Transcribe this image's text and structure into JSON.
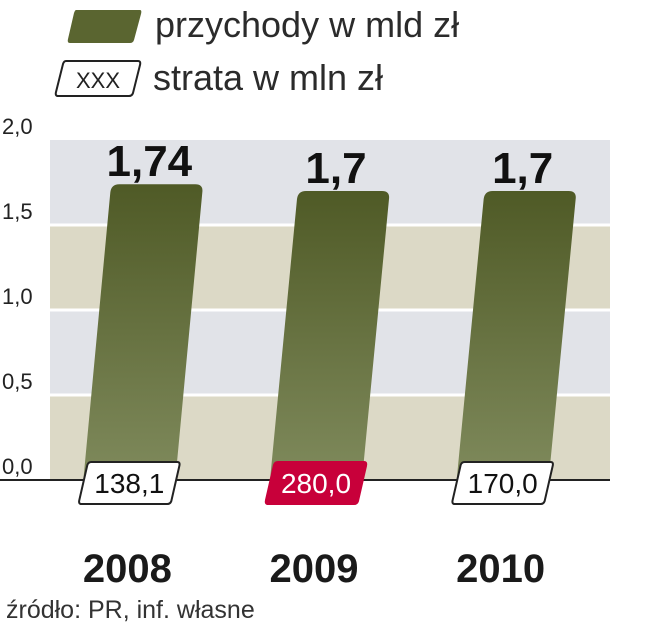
{
  "legend": {
    "revenue_label": "przychody w mld zł",
    "loss_label": "strata w mln zł",
    "loss_swatch_text": "XXX"
  },
  "source": "źródło: PR, inf. własne",
  "colors": {
    "bar_top": "#4f5a26",
    "bar_bottom": "#7f8a5c",
    "band_light": "#e1e3e8",
    "band_olive": "#dcd9c6",
    "loss_highlight": "#c8003a",
    "axis": "#222222"
  },
  "chart_data": {
    "type": "bar",
    "categories": [
      "2008",
      "2009",
      "2010"
    ],
    "series": [
      {
        "name": "przychody w mld zł",
        "values": [
          1.74,
          1.7,
          1.7
        ],
        "labels": [
          "1,74",
          "1,7",
          "1,7"
        ]
      },
      {
        "name": "strata w mln zł",
        "values": [
          138.1,
          280.0,
          170.0
        ],
        "labels": [
          "138,1",
          "280,0",
          "170,0"
        ],
        "highlighted": [
          false,
          true,
          false
        ]
      }
    ],
    "ylim": [
      0,
      2.0
    ],
    "yticks": [
      0,
      0.5,
      1.0,
      1.5,
      2.0
    ],
    "ytick_labels": [
      "0,0",
      "0,5",
      "1,0",
      "1,5",
      "2,0"
    ],
    "grid": true,
    "legend_position": "top-left"
  }
}
